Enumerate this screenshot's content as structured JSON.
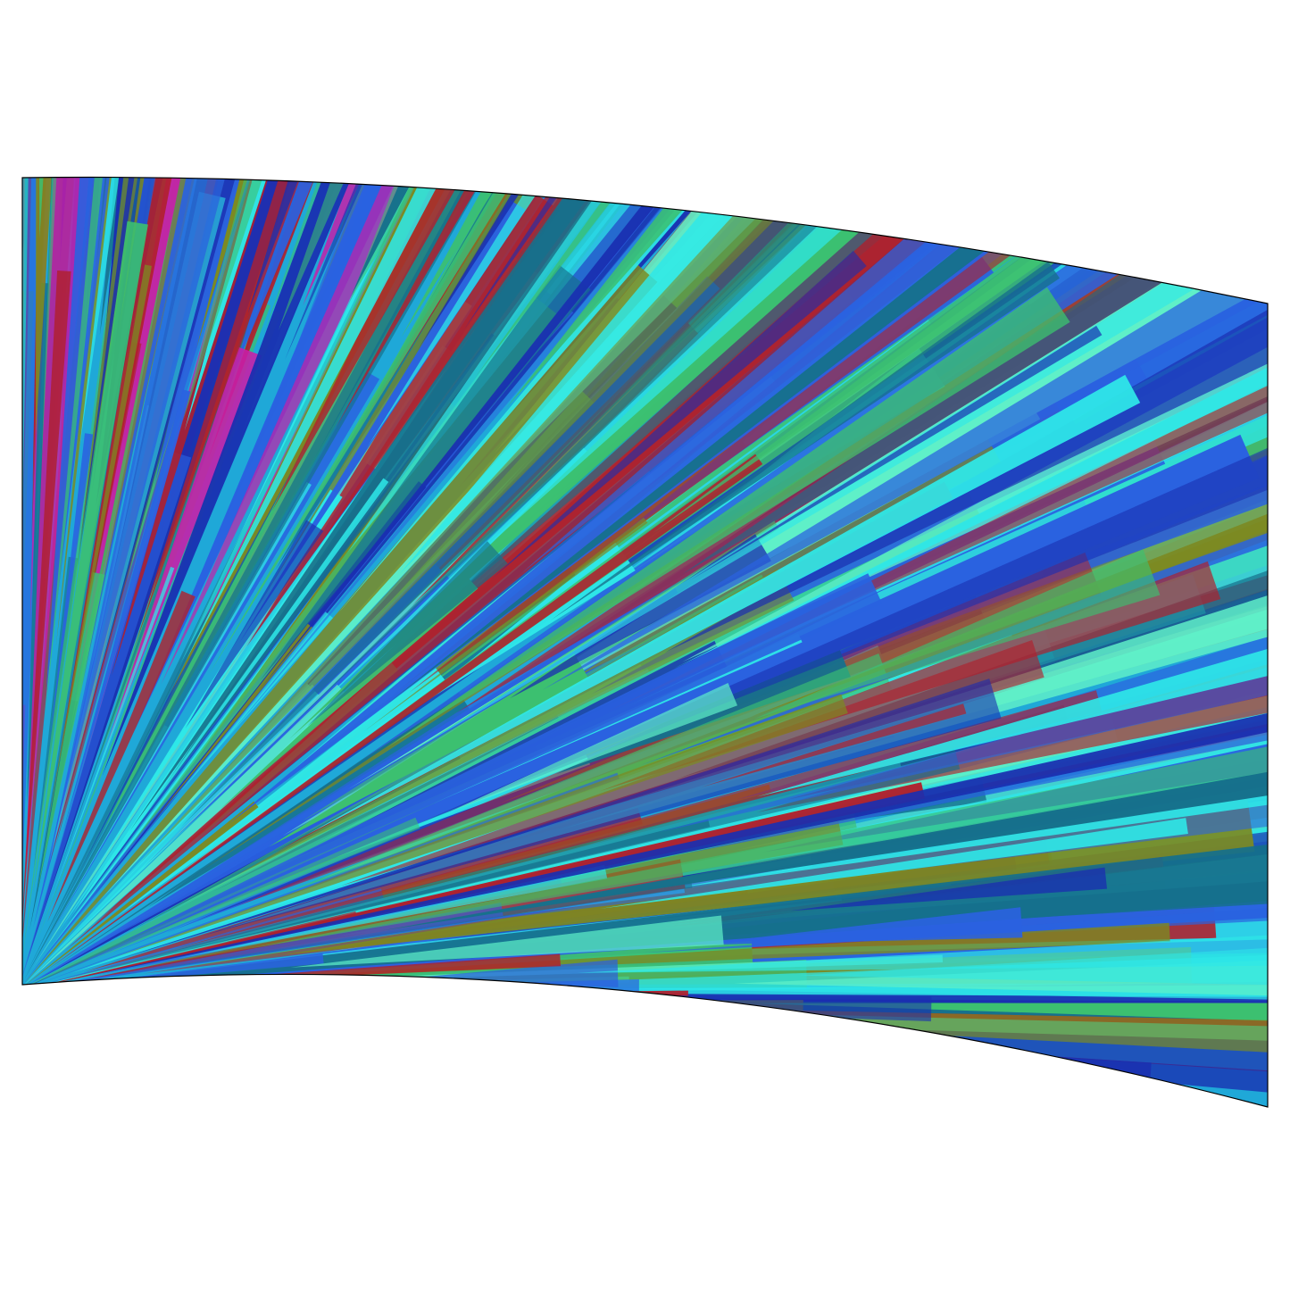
{
  "product": {
    "type": "flag",
    "pattern": "radial-streak",
    "colors": {
      "base": "#1fa8d8",
      "cyan": "#2ee8e8",
      "aqua": "#5ff0c8",
      "blue": "#2a62e0",
      "deep_blue": "#1a2fb0",
      "teal": "#16708c",
      "green": "#3cc070",
      "olive": "#7c8a22",
      "red": "#b0202c",
      "magenta": "#c81ea8",
      "outline": "#000000"
    }
  }
}
